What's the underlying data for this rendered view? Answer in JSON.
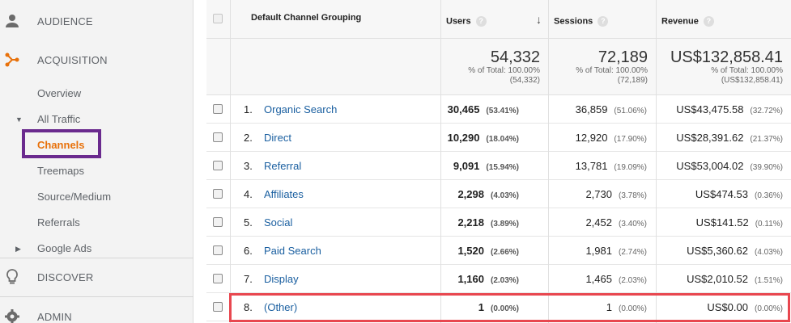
{
  "sidebar": {
    "audience": "AUDIENCE",
    "acquisition": "ACQUISITION",
    "overview": "Overview",
    "all_traffic": "All Traffic",
    "channels": "Channels",
    "treemaps": "Treemaps",
    "source_medium": "Source/Medium",
    "referrals": "Referrals",
    "google_ads": "Google Ads",
    "discover": "DISCOVER",
    "admin": "ADMIN"
  },
  "table": {
    "headers": {
      "dimension": "Default Channel Grouping",
      "users": "Users",
      "sessions": "Sessions",
      "revenue": "Revenue",
      "help": "?"
    },
    "totals": {
      "users": {
        "value": "54,332",
        "pct_label": "% of Total: 100.00%",
        "total": "(54,332)"
      },
      "sessions": {
        "value": "72,189",
        "pct_label": "% of Total: 100.00%",
        "total": "(72,189)"
      },
      "revenue": {
        "value": "US$132,858.41",
        "pct_label": "% of Total: 100.00%",
        "total": "(US$132,858.41)"
      }
    },
    "rows": [
      {
        "num": "1.",
        "name": "Organic Search",
        "users": "30,465",
        "users_pct": "(53.41%)",
        "sessions": "36,859",
        "sessions_pct": "(51.06%)",
        "revenue": "US$43,475.58",
        "revenue_pct": "(32.72%)"
      },
      {
        "num": "2.",
        "name": "Direct",
        "users": "10,290",
        "users_pct": "(18.04%)",
        "sessions": "12,920",
        "sessions_pct": "(17.90%)",
        "revenue": "US$28,391.62",
        "revenue_pct": "(21.37%)"
      },
      {
        "num": "3.",
        "name": "Referral",
        "users": "9,091",
        "users_pct": "(15.94%)",
        "sessions": "13,781",
        "sessions_pct": "(19.09%)",
        "revenue": "US$53,004.02",
        "revenue_pct": "(39.90%)"
      },
      {
        "num": "4.",
        "name": "Affiliates",
        "users": "2,298",
        "users_pct": "(4.03%)",
        "sessions": "2,730",
        "sessions_pct": "(3.78%)",
        "revenue": "US$474.53",
        "revenue_pct": "(0.36%)"
      },
      {
        "num": "5.",
        "name": "Social",
        "users": "2,218",
        "users_pct": "(3.89%)",
        "sessions": "2,452",
        "sessions_pct": "(3.40%)",
        "revenue": "US$141.52",
        "revenue_pct": "(0.11%)"
      },
      {
        "num": "6.",
        "name": "Paid Search",
        "users": "1,520",
        "users_pct": "(2.66%)",
        "sessions": "1,981",
        "sessions_pct": "(2.74%)",
        "revenue": "US$5,360.62",
        "revenue_pct": "(4.03%)"
      },
      {
        "num": "7.",
        "name": "Display",
        "users": "1,160",
        "users_pct": "(2.03%)",
        "sessions": "1,465",
        "sessions_pct": "(2.03%)",
        "revenue": "US$2,010.52",
        "revenue_pct": "(1.51%)"
      },
      {
        "num": "8.",
        "name": "(Other)",
        "users": "1",
        "users_pct": "(0.00%)",
        "sessions": "1",
        "sessions_pct": "(0.00%)",
        "revenue": "US$0.00",
        "revenue_pct": "(0.00%)"
      }
    ]
  },
  "colors": {
    "accent": "#e8710a",
    "link": "#1a5fa0",
    "highlight_purple": "#6a2a8e",
    "highlight_red": "#e8474f"
  }
}
